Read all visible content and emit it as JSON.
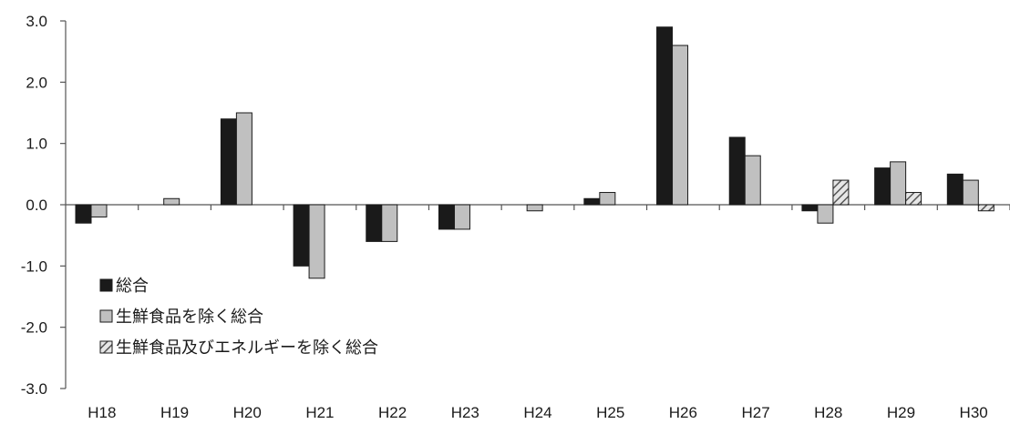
{
  "chart_data": {
    "type": "bar",
    "categories": [
      "H18",
      "H19",
      "H20",
      "H21",
      "H22",
      "H23",
      "H24",
      "H25",
      "H26",
      "H27",
      "H28",
      "H29",
      "H30"
    ],
    "series": [
      {
        "name": "総合",
        "values": [
          -0.3,
          0.0,
          1.4,
          -1.0,
          -0.6,
          -0.4,
          0.0,
          0.1,
          2.9,
          1.1,
          -0.1,
          0.6,
          0.5
        ],
        "color": "#1a1a1a",
        "fill": "solid"
      },
      {
        "name": "生鮮食品を除く総合",
        "values": [
          -0.2,
          0.1,
          1.5,
          -1.2,
          -0.6,
          -0.4,
          -0.1,
          0.2,
          2.6,
          0.8,
          -0.3,
          0.7,
          0.4
        ],
        "color": "#c0c0c0",
        "fill": "solid"
      },
      {
        "name": "生鮮食品及びエネルギーを除く総合",
        "values": [
          null,
          null,
          null,
          null,
          null,
          null,
          null,
          null,
          null,
          null,
          0.4,
          0.2,
          -0.1
        ],
        "color": "#9a9a9a",
        "fill": "hatched"
      }
    ],
    "y_ticks": [
      "3.0",
      "2.0",
      "1.0",
      "0.0",
      "-1.0",
      "-2.0",
      "-3.0"
    ],
    "ylim": [
      -3.0,
      3.0
    ],
    "legend_position": "lower-left",
    "grid": false
  }
}
